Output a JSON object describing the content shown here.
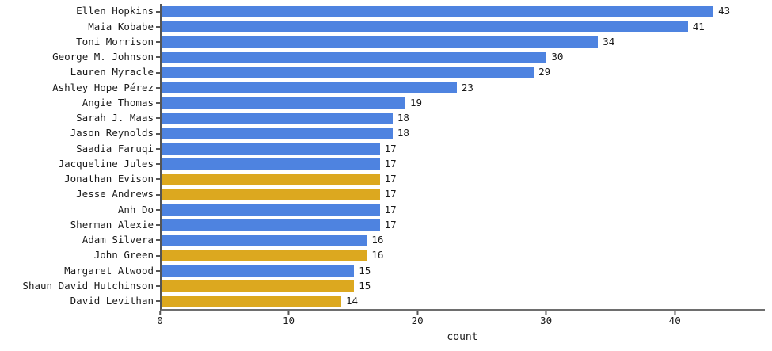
{
  "chart_data": {
    "type": "bar",
    "orientation": "horizontal",
    "title": "",
    "xlabel": "count",
    "ylabel": "",
    "xlim": [
      0,
      47
    ],
    "xticks": [
      0,
      10,
      20,
      30,
      40
    ],
    "grid": false,
    "value_labels_shown": true,
    "categories": [
      "Ellen Hopkins",
      "Maia Kobabe",
      "Toni Morrison",
      "George M. Johnson",
      "Lauren Myracle",
      "Ashley Hope Pérez",
      "Angie Thomas",
      "Sarah J. Maas",
      "Jason Reynolds",
      "Saadia Faruqi",
      "Jacqueline Jules",
      "Jonathan Evison",
      "Jesse Andrews",
      "Anh Do",
      "Sherman Alexie",
      "Adam Silvera",
      "John Green",
      "Margaret Atwood",
      "Shaun David Hutchinson",
      "David Levithan"
    ],
    "values": [
      43,
      41,
      34,
      30,
      29,
      23,
      19,
      18,
      18,
      17,
      17,
      17,
      17,
      17,
      17,
      16,
      16,
      15,
      15,
      14
    ],
    "bar_colors": [
      "blue",
      "blue",
      "blue",
      "blue",
      "blue",
      "blue",
      "blue",
      "blue",
      "blue",
      "blue",
      "blue",
      "gold",
      "gold",
      "blue",
      "blue",
      "blue",
      "gold",
      "blue",
      "gold",
      "gold"
    ],
    "colors": {
      "blue": "#4e83e0",
      "gold": "#dca81f",
      "spine": "#555555",
      "text": "#1a1a1a"
    }
  }
}
